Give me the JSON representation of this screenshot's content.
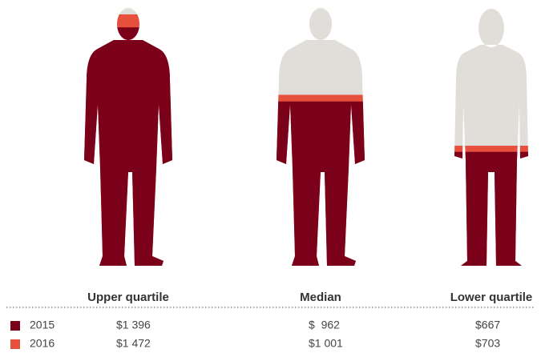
{
  "chart_data": {
    "type": "pictogram",
    "categories": [
      "Upper quartile",
      "Median",
      "Lower quartile"
    ],
    "ylim": [
      0,
      1500
    ],
    "background_color": "#e1ddd9",
    "series": [
      {
        "name": "2016",
        "color": "#e8503e",
        "values": [
          1472,
          1001,
          703
        ],
        "value_labels": [
          "$1 472",
          "$1 001",
          "$703"
        ]
      },
      {
        "name": "2015",
        "color": "#7b0019",
        "values": [
          1396,
          962,
          667
        ],
        "value_labels": [
          "$1 396",
          "$  962",
          "$667"
        ]
      }
    ]
  }
}
